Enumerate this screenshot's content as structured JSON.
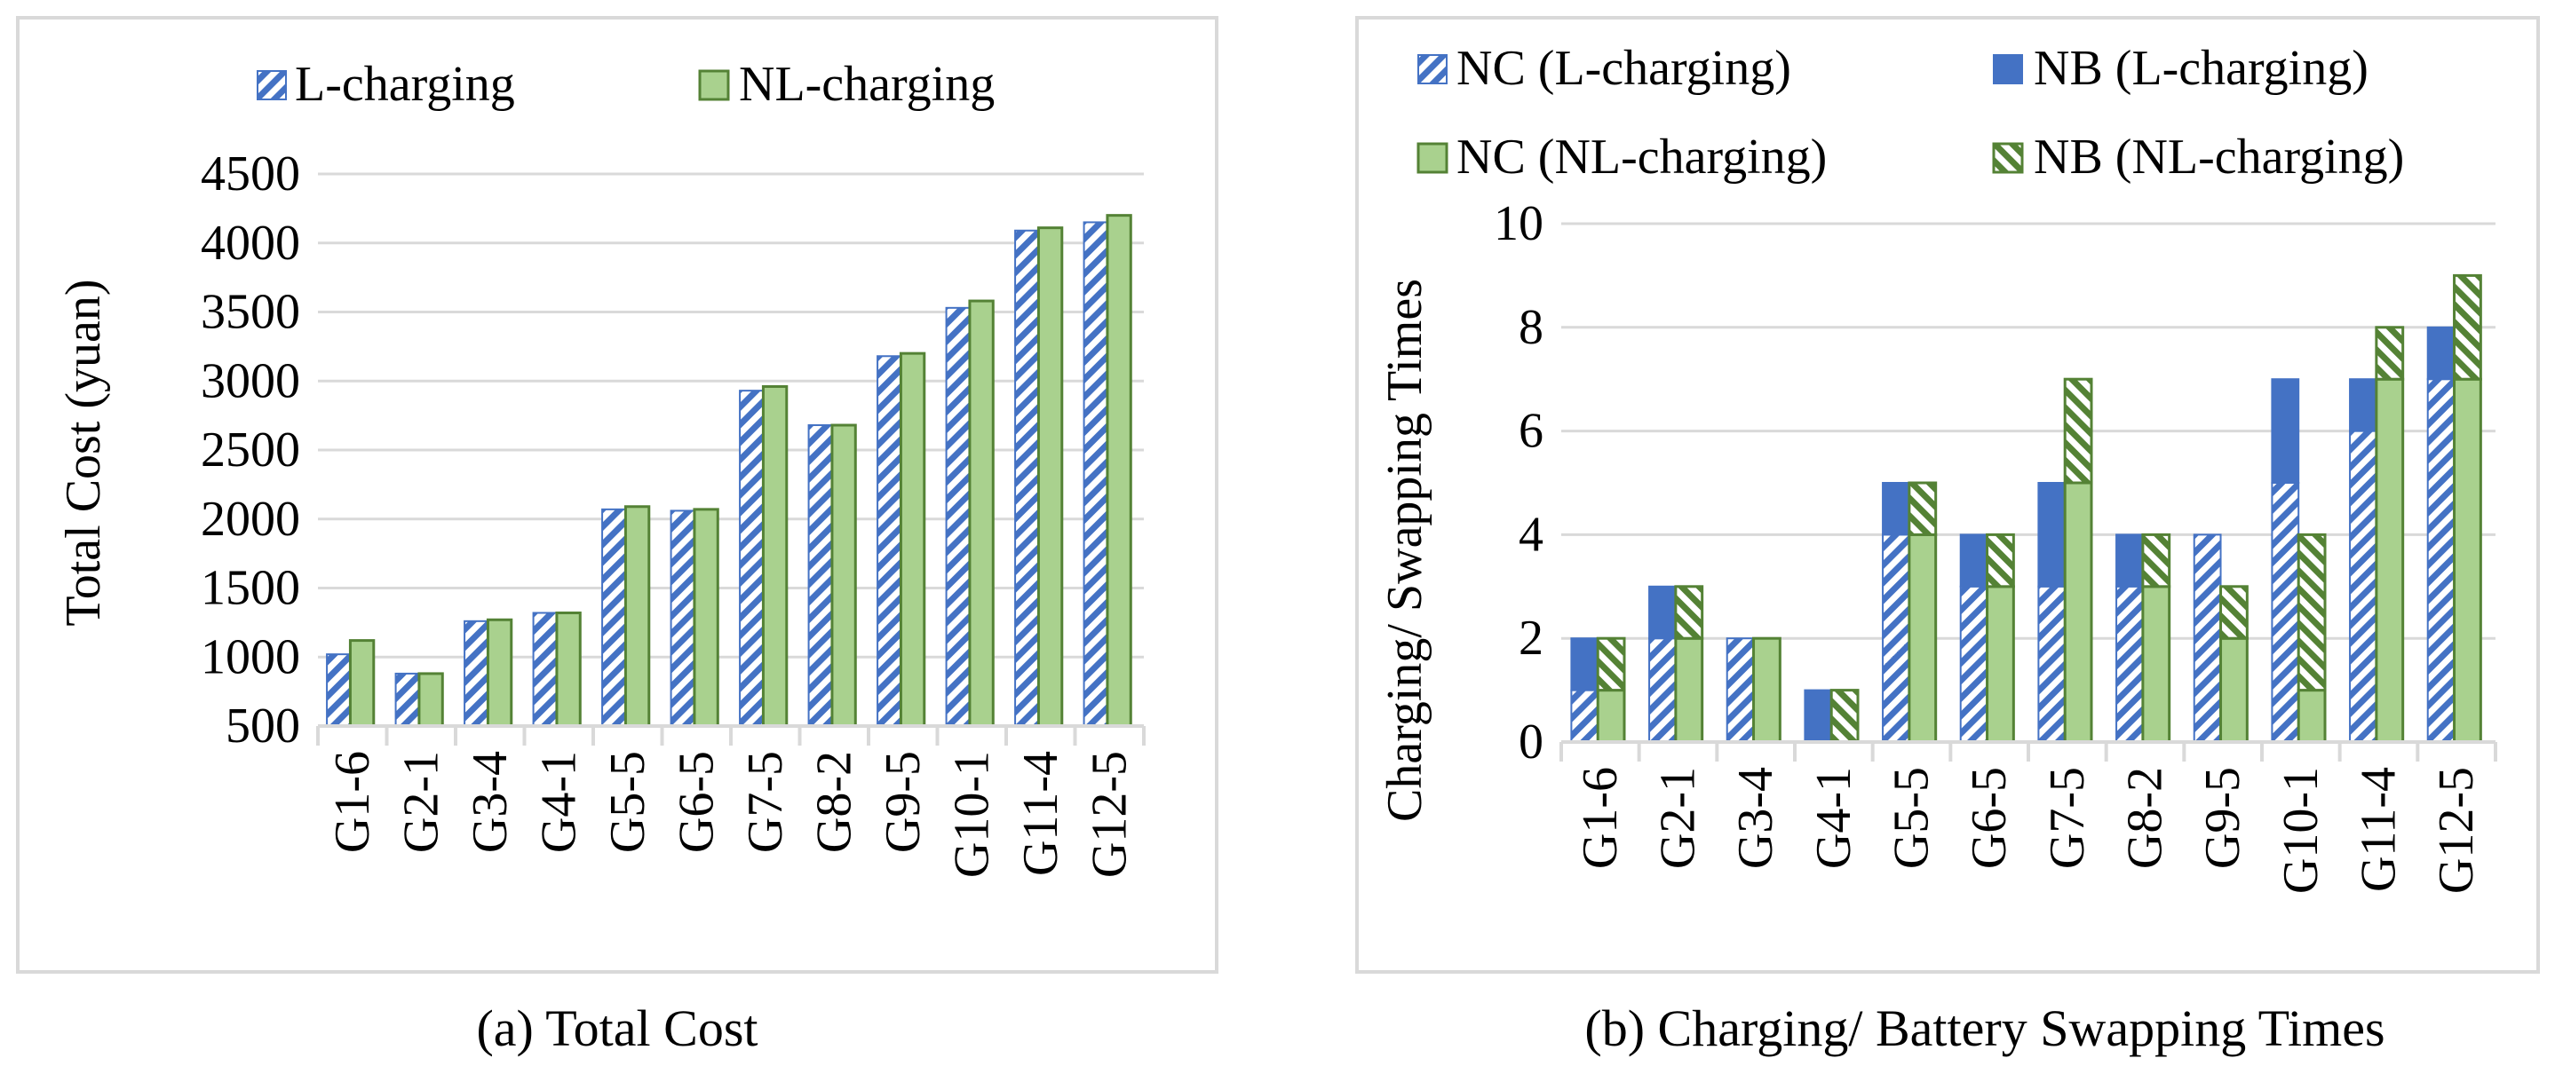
{
  "colors": {
    "blue": "#4472C4",
    "green": "#A9D18E",
    "green_dark": "#548235",
    "white": "#FFFFFF",
    "frame": "#D9D9D9",
    "grid": "#D9D9D9"
  },
  "chart_data": [
    {
      "type": "bar",
      "caption": "(a) Total Cost",
      "ylabel": "Total Cost (yuan)",
      "xlabel": "",
      "ylim": [
        500,
        4500
      ],
      "yticks": [
        500,
        1000,
        1500,
        2000,
        2500,
        3000,
        3500,
        4000,
        4500
      ],
      "grid": true,
      "legend_position": "top",
      "categories": [
        "G1-6",
        "G2-1",
        "G3-4",
        "G4-1",
        "G5-5",
        "G6-5",
        "G7-5",
        "G8-2",
        "G9-5",
        "G10-1",
        "G11-4",
        "G12-5"
      ],
      "series": [
        {
          "name": "L-charging",
          "style": "blue-hatch",
          "values": [
            1020,
            880,
            1260,
            1320,
            2070,
            2060,
            2930,
            2680,
            3180,
            3530,
            4090,
            4150
          ]
        },
        {
          "name": "NL-charging",
          "style": "green-solid",
          "values": [
            1120,
            880,
            1270,
            1320,
            2090,
            2070,
            2960,
            2680,
            3200,
            3580,
            4110,
            4200
          ]
        }
      ]
    },
    {
      "type": "bar",
      "stacked": true,
      "caption": "(b) Charging/ Battery Swapping Times",
      "ylabel": "Charging/ Swapping Times",
      "xlabel": "",
      "ylim": [
        0,
        10
      ],
      "yticks": [
        0,
        2,
        4,
        6,
        8,
        10
      ],
      "grid": true,
      "legend_position": "top",
      "categories": [
        "G1-6",
        "G2-1",
        "G3-4",
        "G4-1",
        "G5-5",
        "G6-5",
        "G7-5",
        "G8-2",
        "G9-5",
        "G10-1",
        "G11-4",
        "G12-5"
      ],
      "series": [
        {
          "name": "NC (L-charging)",
          "group": "L",
          "style": "blue-hatch",
          "values": [
            1,
            2,
            2,
            0,
            4,
            3,
            3,
            3,
            4,
            5,
            6,
            7
          ]
        },
        {
          "name": "NB (L-charging)",
          "group": "L",
          "style": "blue-solid",
          "values": [
            1,
            1,
            0,
            1,
            1,
            1,
            2,
            1,
            0,
            2,
            1,
            1
          ]
        },
        {
          "name": "NC (NL-charging)",
          "group": "NL",
          "style": "green-solid",
          "values": [
            1,
            2,
            2,
            0,
            4,
            3,
            5,
            3,
            2,
            1,
            7,
            7
          ]
        },
        {
          "name": "NB (NL-charging)",
          "group": "NL",
          "style": "green-hatch",
          "values": [
            1,
            1,
            0,
            1,
            1,
            1,
            2,
            1,
            1,
            3,
            1,
            2
          ]
        }
      ]
    }
  ]
}
